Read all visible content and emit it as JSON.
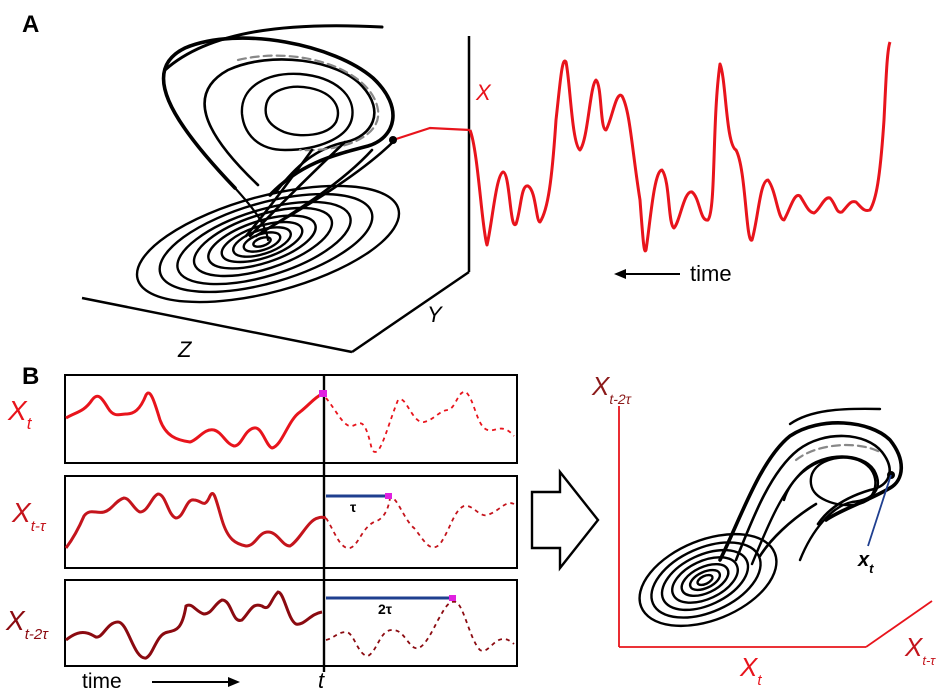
{
  "panel_a": {
    "label": "A",
    "axis_x": "X",
    "axis_y": "Y",
    "axis_z": "Z",
    "time_label": "time"
  },
  "panel_b": {
    "label": "B",
    "row1": {
      "base": "X",
      "sub": "t"
    },
    "row2": {
      "base": "X",
      "sub": "t-τ"
    },
    "row3": {
      "base": "X",
      "sub": "t-2τ"
    },
    "tau_label": "τ",
    "two_tau_label": "2τ",
    "time_label": "time",
    "t_label": "t",
    "recon_axes": {
      "vertical": {
        "base": "X",
        "sub": "t-2τ"
      },
      "horizontal": {
        "base": "X",
        "sub": "t"
      },
      "depth": {
        "base": "X",
        "sub": "t-τ"
      }
    },
    "point_label": {
      "base": "x",
      "sub": "t"
    }
  },
  "colors": {
    "signal_red": "#e8141c",
    "delay1": "#c4141c",
    "delay2": "#8b0a10",
    "axis_dark_red": "#8b1a1a",
    "highlight_magenta": "#e020e0",
    "tau_bar": "#1f3f8f",
    "attractor": "#000000"
  }
}
